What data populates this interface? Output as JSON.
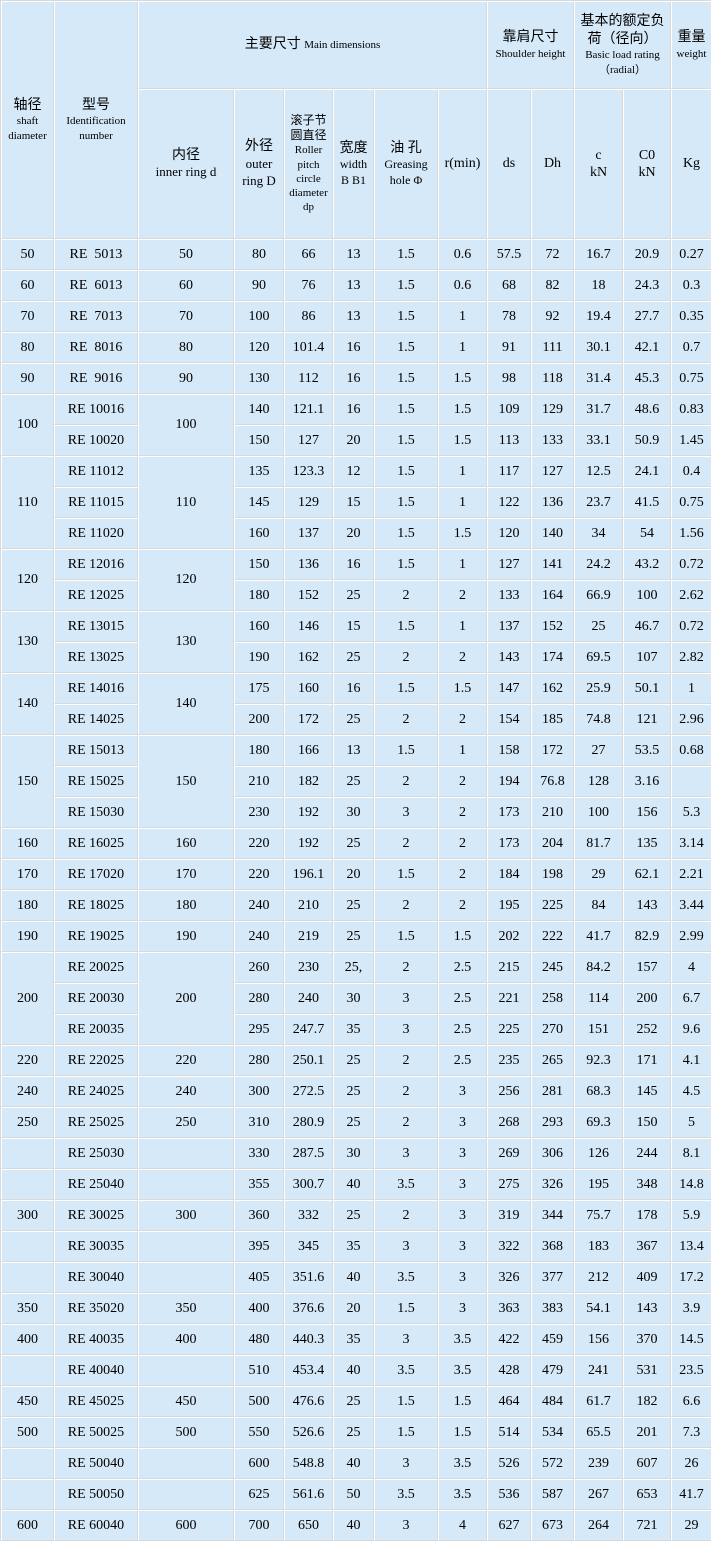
{
  "table": {
    "header": {
      "shaft": {
        "zh": "轴径",
        "en": "shaft diameter"
      },
      "model": {
        "zh": "型号",
        "en": "Identification number"
      },
      "main_dimensions": {
        "zh": "主要尺寸",
        "en": "Main dimensions"
      },
      "inner_ring": {
        "zh": "内径",
        "en": "inner ring d"
      },
      "outer_ring": {
        "zh": "外径",
        "en": "outer ring D"
      },
      "roller_pitch": {
        "zh": "滚子节圆直径",
        "en": "Roller pitch circle diameter dp"
      },
      "width": {
        "zh": "宽度",
        "en": "width B B1"
      },
      "greasing_hole": {
        "zh": "油 孔",
        "en": "Greasing hole Φ"
      },
      "r_min": "r(min)",
      "shoulder": {
        "zh": "靠肩尺寸",
        "en": "Shoulder height"
      },
      "load_rating": {
        "zh": "基本的额定负荷（径向）",
        "en": "Basic load rating（radial）"
      },
      "weight": {
        "zh": "重量",
        "en": "weight"
      },
      "ds": "ds",
      "dh": "Dh",
      "c": "c\nkN",
      "c0": "C0\nkN",
      "kg": "Kg"
    },
    "rows": [
      {
        "shaft": "50",
        "model": "RE  5013",
        "d": "50",
        "vals": [
          "80",
          "66",
          "13",
          "1.5",
          "0.6",
          "57.5",
          "72",
          "16.7",
          "20.9",
          "0.27"
        ]
      },
      {
        "shaft": "60",
        "model": "RE  6013",
        "d": "60",
        "vals": [
          "90",
          "76",
          "13",
          "1.5",
          "0.6",
          "68",
          "82",
          "18",
          "24.3",
          "0.3"
        ]
      },
      {
        "shaft": "70",
        "model": "RE  7013",
        "d": "70",
        "vals": [
          "100",
          "86",
          "13",
          "1.5",
          "1",
          "78",
          "92",
          "19.4",
          "27.7",
          "0.35"
        ]
      },
      {
        "shaft": "80",
        "model": "RE  8016",
        "d": "80",
        "vals": [
          "120",
          "101.4",
          "16",
          "1.5",
          "1",
          "91",
          "111",
          "30.1",
          "42.1",
          "0.7"
        ]
      },
      {
        "shaft": "90",
        "model": "RE  9016",
        "d": "90",
        "vals": [
          "130",
          "112",
          "16",
          "1.5",
          "1.5",
          "98",
          "118",
          "31.4",
          "45.3",
          "0.75"
        ]
      },
      {
        "shaft": {
          "text": "100",
          "rowspan": 2
        },
        "model": "RE 10016",
        "d": {
          "text": "100",
          "rowspan": 2
        },
        "vals": [
          "140",
          "121.1",
          "16",
          "1.5",
          "1.5",
          "109",
          "129",
          "31.7",
          "48.6",
          "0.83"
        ]
      },
      {
        "shaft": null,
        "model": "RE 10020",
        "d": null,
        "vals": [
          "150",
          "127",
          "20",
          "1.5",
          "1.5",
          "113",
          "133",
          "33.1",
          "50.9",
          "1.45"
        ]
      },
      {
        "shaft": {
          "text": "110",
          "rowspan": 3
        },
        "model": "RE 11012",
        "d": {
          "text": "110",
          "rowspan": 3
        },
        "vals": [
          "135",
          "123.3",
          "12",
          "1.5",
          "1",
          "117",
          "127",
          "12.5",
          "24.1",
          "0.4"
        ]
      },
      {
        "shaft": null,
        "model": "RE 11015",
        "d": null,
        "vals": [
          "145",
          "129",
          "15",
          "1.5",
          "1",
          "122",
          "136",
          "23.7",
          "41.5",
          "0.75"
        ]
      },
      {
        "shaft": null,
        "model": "RE 11020",
        "d": null,
        "vals": [
          "160",
          "137",
          "20",
          "1.5",
          "1.5",
          "120",
          "140",
          "34",
          "54",
          "1.56"
        ]
      },
      {
        "shaft": {
          "text": "120",
          "rowspan": 2
        },
        "model": "RE 12016",
        "d": {
          "text": "120",
          "rowspan": 2
        },
        "vals": [
          "150",
          "136",
          "16",
          "1.5",
          "1",
          "127",
          "141",
          "24.2",
          "43.2",
          "0.72"
        ]
      },
      {
        "shaft": null,
        "model": "RE 12025",
        "d": null,
        "vals": [
          "180",
          "152",
          "25",
          "2",
          "2",
          "133",
          "164",
          "66.9",
          "100",
          "2.62"
        ]
      },
      {
        "shaft": {
          "text": "130",
          "rowspan": 2
        },
        "model": "RE 13015",
        "d": {
          "text": "130",
          "rowspan": 2
        },
        "vals": [
          "160",
          "146",
          "15",
          "1.5",
          "1",
          "137",
          "152",
          "25",
          "46.7",
          "0.72"
        ]
      },
      {
        "shaft": null,
        "model": "RE 13025",
        "d": null,
        "vals": [
          "190",
          "162",
          "25",
          "2",
          "2",
          "143",
          "174",
          "69.5",
          "107",
          "2.82"
        ]
      },
      {
        "shaft": {
          "text": "140",
          "rowspan": 2
        },
        "model": "RE 14016",
        "d": {
          "text": "140",
          "rowspan": 2
        },
        "vals": [
          "175",
          "160",
          "16",
          "1.5",
          "1.5",
          "147",
          "162",
          "25.9",
          "50.1",
          "1"
        ]
      },
      {
        "shaft": null,
        "model": "RE 14025",
        "d": null,
        "vals": [
          "200",
          "172",
          "25",
          "2",
          "2",
          "154",
          "185",
          "74.8",
          "121",
          "2.96"
        ]
      },
      {
        "shaft": {
          "text": "150",
          "rowspan": 3
        },
        "model": "RE 15013",
        "d": {
          "text": "150",
          "rowspan": 3
        },
        "vals": [
          "180",
          "166",
          "13",
          "1.5",
          "1",
          "158",
          "172",
          "27",
          "53.5",
          "0.68"
        ]
      },
      {
        "shaft": null,
        "model": "RE 15025",
        "d": null,
        "vals": [
          "210",
          "182",
          "25",
          "2",
          "2",
          "194",
          "76.8",
          "128",
          "3.16",
          ""
        ]
      },
      {
        "shaft": null,
        "model": "RE 15030",
        "d": null,
        "vals": [
          "230",
          "192",
          "30",
          "3",
          "2",
          "173",
          "210",
          "100",
          "156",
          "5.3"
        ]
      },
      {
        "shaft": "160",
        "model": "RE 16025",
        "d": "160",
        "vals": [
          "220",
          "192",
          "25",
          "2",
          "2",
          "173",
          "204",
          "81.7",
          "135",
          "3.14"
        ]
      },
      {
        "shaft": "170",
        "model": "RE 17020",
        "d": "170",
        "vals": [
          "220",
          "196.1",
          "20",
          "1.5",
          "2",
          "184",
          "198",
          "29",
          "62.1",
          "2.21"
        ]
      },
      {
        "shaft": "180",
        "model": "RE 18025",
        "d": "180",
        "vals": [
          "240",
          "210",
          "25",
          "2",
          "2",
          "195",
          "225",
          "84",
          "143",
          "3.44"
        ]
      },
      {
        "shaft": "190",
        "model": "RE 19025",
        "d": "190",
        "vals": [
          "240",
          "219",
          "25",
          "1.5",
          "1.5",
          "202",
          "222",
          "41.7",
          "82.9",
          "2.99"
        ]
      },
      {
        "shaft": {
          "text": "200",
          "rowspan": 3
        },
        "model": "RE 20025",
        "d": {
          "text": "200",
          "rowspan": 3
        },
        "vals": [
          "260",
          "230",
          "25,",
          "2",
          "2.5",
          "215",
          "245",
          "84.2",
          "157",
          "4"
        ]
      },
      {
        "shaft": null,
        "model": "RE 20030",
        "d": null,
        "vals": [
          "280",
          "240",
          "30",
          "3",
          "2.5",
          "221",
          "258",
          "114",
          "200",
          "6.7"
        ]
      },
      {
        "shaft": null,
        "model": "RE 20035",
        "d": null,
        "vals": [
          "295",
          "247.7",
          "35",
          "3",
          "2.5",
          "225",
          "270",
          "151",
          "252",
          "9.6"
        ]
      },
      {
        "shaft": "220",
        "model": "RE 22025",
        "d": "220",
        "vals": [
          "280",
          "250.1",
          "25",
          "2",
          "2.5",
          "235",
          "265",
          "92.3",
          "171",
          "4.1"
        ]
      },
      {
        "shaft": "240",
        "model": "RE 24025",
        "d": "240",
        "vals": [
          "300",
          "272.5",
          "25",
          "2",
          "3",
          "256",
          "281",
          "68.3",
          "145",
          "4.5"
        ]
      },
      {
        "shaft": "250",
        "model": "RE 25025",
        "d": "250",
        "vals": [
          "310",
          "280.9",
          "25",
          "2",
          "3",
          "268",
          "293",
          "69.3",
          "150",
          "5"
        ]
      },
      {
        "shaft": "",
        "model": "RE 25030",
        "d": "",
        "vals": [
          "330",
          "287.5",
          "30",
          "3",
          "3",
          "269",
          "306",
          "126",
          "244",
          "8.1"
        ]
      },
      {
        "shaft": "",
        "model": "RE 25040",
        "d": "",
        "vals": [
          "355",
          "300.7",
          "40",
          "3.5",
          "3",
          "275",
          "326",
          "195",
          "348",
          "14.8"
        ]
      },
      {
        "shaft": "300",
        "model": "RE 30025",
        "d": "300",
        "vals": [
          "360",
          "332",
          "25",
          "2",
          "3",
          "319",
          "344",
          "75.7",
          "178",
          "5.9"
        ]
      },
      {
        "shaft": "",
        "model": "RE 30035",
        "d": "",
        "vals": [
          "395",
          "345",
          "35",
          "3",
          "3",
          "322",
          "368",
          "183",
          "367",
          "13.4"
        ]
      },
      {
        "shaft": "",
        "model": "RE 30040",
        "d": "",
        "vals": [
          "405",
          "351.6",
          "40",
          "3.5",
          "3",
          "326",
          "377",
          "212",
          "409",
          "17.2"
        ]
      },
      {
        "shaft": "350",
        "model": "RE 35020",
        "d": "350",
        "vals": [
          "400",
          "376.6",
          "20",
          "1.5",
          "3",
          "363",
          "383",
          "54.1",
          "143",
          "3.9"
        ]
      },
      {
        "shaft": "400",
        "model": "RE 40035",
        "d": "400",
        "vals": [
          "480",
          "440.3",
          "35",
          "3",
          "3.5",
          "422",
          "459",
          "156",
          "370",
          "14.5"
        ]
      },
      {
        "shaft": "",
        "model": "RE 40040",
        "d": "",
        "vals": [
          "510",
          "453.4",
          "40",
          "3.5",
          "3.5",
          "428",
          "479",
          "241",
          "531",
          "23.5"
        ]
      },
      {
        "shaft": "450",
        "model": "RE 45025",
        "d": "450",
        "vals": [
          "500",
          "476.6",
          "25",
          "1.5",
          "1.5",
          "464",
          "484",
          "61.7",
          "182",
          "6.6"
        ]
      },
      {
        "shaft": "500",
        "model": "RE 50025",
        "d": "500",
        "vals": [
          "550",
          "526.6",
          "25",
          "1.5",
          "1.5",
          "514",
          "534",
          "65.5",
          "201",
          "7.3"
        ]
      },
      {
        "shaft": "",
        "model": "RE 50040",
        "d": "",
        "vals": [
          "600",
          "548.8",
          "40",
          "3",
          "3.5",
          "526",
          "572",
          "239",
          "607",
          "26"
        ]
      },
      {
        "shaft": "",
        "model": "RE 50050",
        "d": "",
        "vals": [
          "625",
          "561.6",
          "50",
          "3.5",
          "3.5",
          "536",
          "587",
          "267",
          "653",
          "41.7"
        ]
      },
      {
        "shaft": "600",
        "model": "RE 60040",
        "d": "600",
        "vals": [
          "700",
          "650",
          "40",
          "3",
          "4",
          "627",
          "673",
          "264",
          "721",
          "29"
        ]
      }
    ]
  },
  "colors": {
    "cell_background": "#d6e9f8",
    "grid_dark": "#d9d9d9",
    "grid_light": "#ffffff",
    "text": "#000000"
  }
}
